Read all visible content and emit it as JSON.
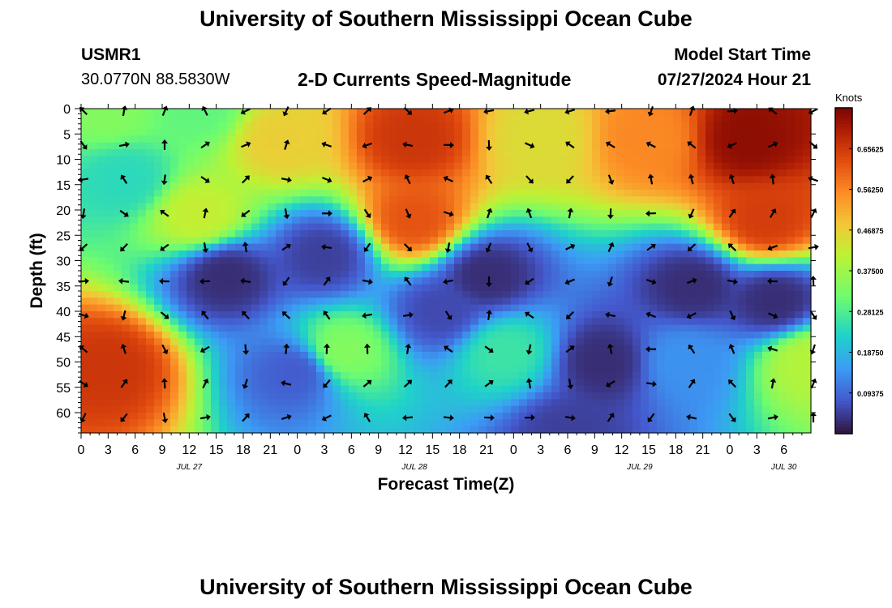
{
  "header": {
    "title": "University of Southern Mississippi Ocean Cube",
    "station": "USMR1",
    "coords": "30.0770N  88.5830W",
    "subtitle": "2-D Currents Speed-Magnitude",
    "model_label": "Model Start Time",
    "model_time": "07/27/2024 Hour 21"
  },
  "footer": {
    "title": "University of Southern Mississippi Ocean Cube"
  },
  "colors": {
    "low": "#30123b",
    "high": "#7a0403",
    "arrow": "#000000"
  },
  "chart_data": {
    "type": "heatmap",
    "title": "2-D Currents Speed-Magnitude",
    "xlabel": "Forecast Time(Z)",
    "ylabel": "Depth (ft)",
    "colorbar_label": "Knots",
    "x_hours": [
      0,
      81
    ],
    "ylim": [
      0,
      64
    ],
    "x_tick_labels": [
      "0",
      "3",
      "6",
      "9",
      "12",
      "15",
      "18",
      "21",
      "0",
      "3",
      "6",
      "9",
      "12",
      "15",
      "18",
      "21",
      "0",
      "3",
      "6",
      "9",
      "12",
      "15",
      "18",
      "21",
      "0",
      "3",
      "6"
    ],
    "y_ticks": [
      0,
      5,
      10,
      15,
      20,
      25,
      30,
      35,
      40,
      45,
      50,
      55,
      60
    ],
    "date_labels": [
      {
        "label": "JUL 27",
        "hour": 12
      },
      {
        "label": "JUL 28",
        "hour": 37
      },
      {
        "label": "JUL 29",
        "hour": 62
      },
      {
        "label": "JUL 30",
        "hour": 78
      }
    ],
    "colorbar_ticks": [
      "0.65625",
      "0.56250",
      "0.46875",
      "0.37500",
      "0.28125",
      "0.18750",
      "0.09375"
    ],
    "colorbar_range": [
      0,
      0.75
    ],
    "speed_features": [
      {
        "hour": 3,
        "depth": 0,
        "speed": 0.34
      },
      {
        "hour": 13,
        "depth": 0,
        "speed": 0.3
      },
      {
        "hour": 22,
        "depth": 6,
        "speed": 0.47
      },
      {
        "hour": 37,
        "depth": 6,
        "speed": 0.66
      },
      {
        "hour": 51,
        "depth": 6,
        "speed": 0.45
      },
      {
        "hour": 63,
        "depth": 6,
        "speed": 0.56
      },
      {
        "hour": 74,
        "depth": 6,
        "speed": 0.73
      },
      {
        "hour": 13,
        "depth": 21,
        "speed": 0.42
      },
      {
        "hour": 37,
        "depth": 22,
        "speed": 0.62
      },
      {
        "hour": 76,
        "depth": 22,
        "speed": 0.65
      },
      {
        "hour": 16,
        "depth": 33,
        "speed": 0.03
      },
      {
        "hour": 27,
        "depth": 29,
        "speed": 0.05
      },
      {
        "hour": 45,
        "depth": 33,
        "speed": 0.03
      },
      {
        "hour": 68,
        "depth": 35,
        "speed": 0.03
      },
      {
        "hour": 77,
        "depth": 38,
        "speed": 0.03
      },
      {
        "hour": 40,
        "depth": 40,
        "speed": 0.06
      },
      {
        "hour": 58,
        "depth": 50,
        "speed": 0.03
      },
      {
        "hour": 24,
        "depth": 52,
        "speed": 0.08
      },
      {
        "hour": 54,
        "depth": 64,
        "speed": 0.05
      },
      {
        "hour": 3,
        "depth": 51,
        "speed": 0.66
      },
      {
        "hour": 29,
        "depth": 48,
        "speed": 0.34
      },
      {
        "hour": 47,
        "depth": 48,
        "speed": 0.26
      },
      {
        "hour": 67,
        "depth": 50,
        "speed": 0.14
      },
      {
        "hour": 81,
        "depth": 50,
        "speed": 0.4
      },
      {
        "hour": 5,
        "depth": 14,
        "speed": 0.24
      }
    ],
    "arrow_grid": {
      "hours": [
        0,
        4.5,
        9,
        13.5,
        18,
        22.5,
        27,
        31.5,
        36,
        40.5,
        45,
        49.5,
        54,
        58.5,
        63,
        67.5,
        72,
        76.5,
        81
      ],
      "depths": [
        0,
        6.7,
        13.5,
        20.2,
        26.9,
        33.6,
        40.3,
        47,
        53.8,
        60.5
      ]
    },
    "direction_note": "arrows indicate current direction (degrees clockwise from up)"
  }
}
